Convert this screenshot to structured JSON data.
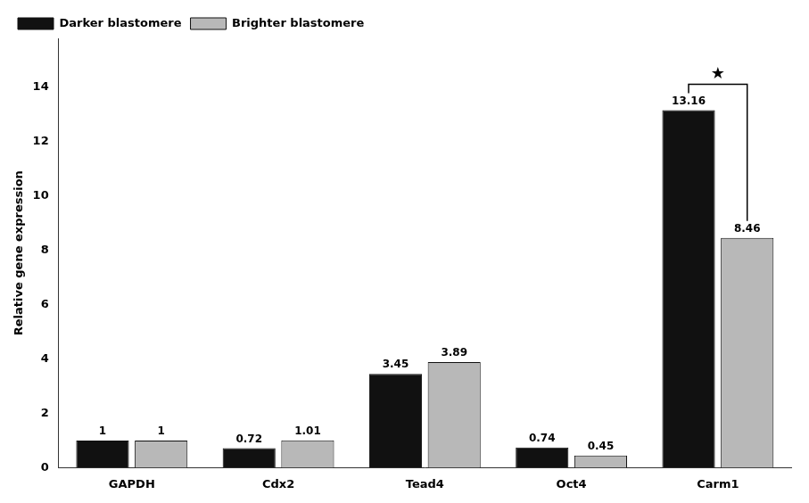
{
  "chart_data": {
    "type": "bar",
    "categories": [
      "GAPDH",
      "Cdx2",
      "Tead4",
      "Oct4",
      "Carm1"
    ],
    "series": [
      {
        "name": "Darker blastomere",
        "color": "#111111",
        "values": [
          1.0,
          0.72,
          3.45,
          0.74,
          13.16
        ]
      },
      {
        "name": "Brighter blastomere",
        "color": "#b8b8b8",
        "values": [
          1.0,
          1.01,
          3.89,
          0.45,
          8.46
        ]
      }
    ],
    "ylabel": "Relative gene expression",
    "ylim": [
      0,
      15.8
    ],
    "yticks": [
      0,
      2,
      4,
      6,
      8,
      10,
      12,
      14
    ],
    "grid": false,
    "legend": "upper left",
    "data_labels": true,
    "annotations": [
      {
        "text": "★",
        "category": "Carm1"
      }
    ]
  }
}
